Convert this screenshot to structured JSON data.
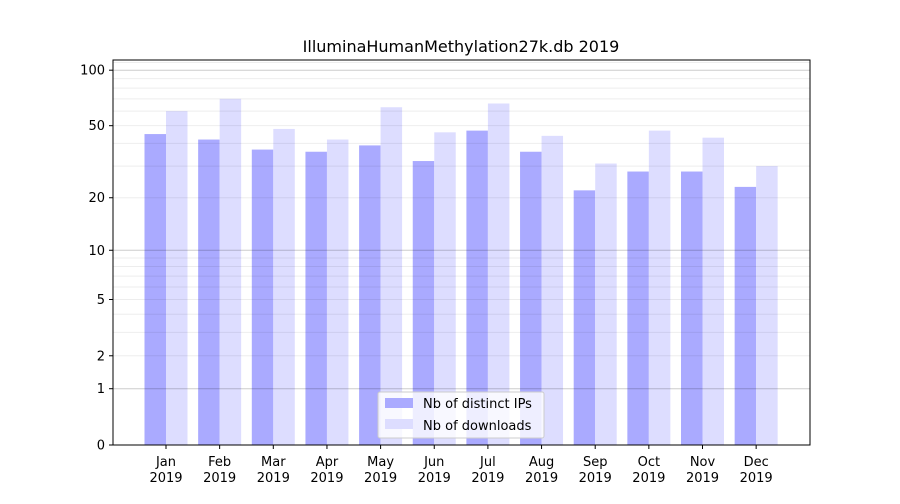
{
  "chart_data": {
    "type": "bar",
    "title": "IlluminaHumanMethylation27k.db 2019",
    "xlabel": "",
    "ylabel": "",
    "y_scale": "log(1+x)",
    "ylim": [
      0,
      114
    ],
    "yticks": [
      0,
      1,
      2,
      5,
      10,
      20,
      50,
      100
    ],
    "grid": true,
    "legend_position": "bottom-center",
    "categories": [
      "Jan\n2019",
      "Feb\n2019",
      "Mar\n2019",
      "Apr\n2019",
      "May\n2019",
      "Jun\n2019",
      "Jul\n2019",
      "Aug\n2019",
      "Sep\n2019",
      "Oct\n2019",
      "Nov\n2019",
      "Dec\n2019"
    ],
    "series": [
      {
        "name": "Nb of distinct IPs",
        "color": "#aaaaff",
        "values": [
          45,
          42,
          37,
          36,
          39,
          32,
          47,
          36,
          22,
          28,
          28,
          23
        ]
      },
      {
        "name": "Nb of downloads",
        "color": "#ddddff",
        "values": [
          60,
          70,
          48,
          42,
          63,
          46,
          66,
          44,
          31,
          47,
          43,
          30
        ]
      }
    ]
  }
}
